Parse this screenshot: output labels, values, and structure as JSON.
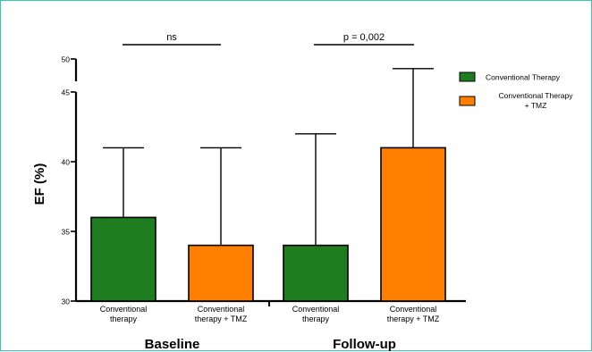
{
  "chart_data": {
    "type": "bar",
    "ylabel": "EF (%)",
    "yticks": [
      30,
      35,
      40,
      45,
      50
    ],
    "axis_break": true,
    "groups": [
      {
        "label": "Baseline",
        "categories": [
          "Conventional therapy",
          "Conventional therapy + TMZ"
        ]
      },
      {
        "label": "Follow-up",
        "categories": [
          "Conventional therapy",
          "Conventional therapy + TMZ"
        ]
      }
    ],
    "series": [
      {
        "name": "Conventional Therapy",
        "color": "#1e7d1e"
      },
      {
        "name": "Conventional Therapy + TMZ",
        "color": "#ff8000"
      }
    ],
    "bars": [
      {
        "category_label_line1": "Conventional",
        "category_label_line2": "therapy",
        "series": 0,
        "value": 36,
        "error_upper": 41
      },
      {
        "category_label_line1": "Conventional",
        "category_label_line2": "therapy + TMZ",
        "series": 1,
        "value": 34,
        "error_upper": 41
      },
      {
        "category_label_line1": "Conventional",
        "category_label_line2": "therapy",
        "series": 0,
        "value": 34,
        "error_upper": 42
      },
      {
        "category_label_line1": "Conventional",
        "category_label_line2": "therapy + TMZ",
        "series": 1,
        "value": 41,
        "error_upper": 48.5
      }
    ],
    "significance": [
      {
        "label": "ns"
      },
      {
        "label": "p = 0,002"
      }
    ],
    "legend": [
      {
        "line1": "Conventional Therapy",
        "line2": ""
      },
      {
        "line1": "Conventional Therapy",
        "line2": "+ TMZ"
      }
    ],
    "legend_position": "top-right"
  }
}
